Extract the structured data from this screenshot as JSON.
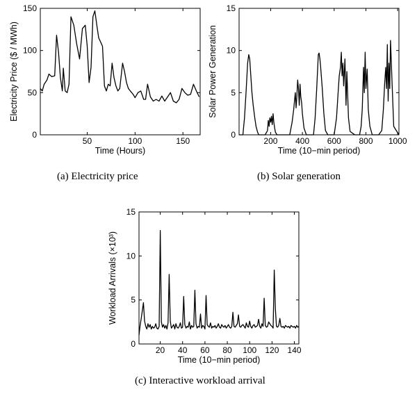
{
  "captions": {
    "a": "(a) Electricity price",
    "b": "(b) Solar generation",
    "c": "(c) Interactive workload arrival"
  },
  "chart_data": [
    {
      "id": "a",
      "type": "line",
      "xlabel": "Time (Hours)",
      "ylabel": "Electricity Price ($ / MWh)",
      "xlim": [
        1,
        168
      ],
      "ylim": [
        0,
        150
      ],
      "xticks": [
        50,
        100,
        150
      ],
      "yticks": [
        0,
        50,
        100,
        150
      ],
      "grid": false,
      "color": "#000000",
      "x": [
        1,
        3,
        5,
        8,
        10,
        13,
        16,
        18,
        20,
        22,
        24,
        25,
        27,
        29,
        31,
        33,
        36,
        39,
        42,
        45,
        48,
        50,
        52,
        54,
        56,
        58,
        60,
        62,
        64,
        66,
        68,
        70,
        72,
        74,
        76,
        78,
        80,
        82,
        84,
        87,
        89,
        91,
        93,
        95,
        98,
        100,
        103,
        106,
        109,
        111,
        113,
        116,
        119,
        122,
        125,
        128,
        131,
        134,
        137,
        140,
        143,
        146,
        149,
        152,
        155,
        158,
        161,
        164,
        167
      ],
      "y": [
        55,
        52,
        60,
        65,
        72,
        69,
        70,
        118,
        98,
        68,
        52,
        79,
        52,
        50,
        60,
        140,
        130,
        108,
        90,
        126,
        130,
        105,
        62,
        80,
        140,
        147,
        130,
        115,
        110,
        105,
        58,
        52,
        60,
        58,
        85,
        68,
        58,
        52,
        55,
        85,
        75,
        62,
        55,
        52,
        48,
        44,
        50,
        52,
        42,
        42,
        60,
        45,
        40,
        42,
        40,
        46,
        40,
        45,
        50,
        40,
        38,
        42,
        55,
        50,
        47,
        48,
        60,
        52,
        45
      ]
    },
    {
      "id": "b",
      "type": "line",
      "xlabel": "Time (10−min period)",
      "ylabel": "Solar Power Generation",
      "xlim": [
        1,
        1008
      ],
      "ylim": [
        0,
        15
      ],
      "xticks": [
        200,
        400,
        600,
        800,
        1000
      ],
      "yticks": [
        0,
        5,
        10,
        15
      ],
      "grid": false,
      "color": "#000000",
      "x": [
        0,
        25,
        35,
        45,
        55,
        62,
        68,
        75,
        82,
        90,
        100,
        108,
        118,
        125,
        140,
        165,
        180,
        185,
        190,
        195,
        200,
        205,
        210,
        215,
        220,
        225,
        230,
        240,
        270,
        320,
        335,
        345,
        350,
        355,
        360,
        365,
        370,
        375,
        380,
        385,
        390,
        395,
        400,
        410,
        425,
        470,
        480,
        490,
        500,
        505,
        510,
        515,
        525,
        535,
        545,
        560,
        600,
        615,
        625,
        632,
        640,
        645,
        650,
        655,
        660,
        668,
        675,
        680,
        690,
        700,
        730,
        760,
        770,
        777,
        785,
        790,
        795,
        800,
        808,
        815,
        825,
        840,
        880,
        900,
        910,
        918,
        925,
        930,
        935,
        940,
        945,
        950,
        955,
        965,
        975,
        1008
      ],
      "y": [
        0,
        0,
        2,
        5,
        8.5,
        9.5,
        9,
        7,
        5,
        3.5,
        2,
        1,
        0.3,
        0,
        0,
        0,
        0.5,
        1.7,
        1,
        2,
        1.5,
        2.2,
        1.2,
        2.5,
        1.5,
        0.8,
        0.3,
        0,
        0,
        0,
        1.5,
        3,
        4,
        5,
        3.2,
        4.5,
        6.5,
        5.5,
        3.5,
        6,
        4.5,
        3.8,
        2.5,
        0.8,
        0,
        0,
        2,
        5.5,
        9.5,
        9.7,
        9,
        8,
        5.5,
        2.5,
        0.5,
        0,
        0,
        2,
        5,
        7,
        8,
        9.8,
        7,
        8.5,
        5.8,
        9,
        3.5,
        7.5,
        2,
        0.4,
        0,
        0,
        1,
        3,
        8,
        5,
        9.8,
        5.5,
        7.8,
        3,
        1,
        0,
        0,
        0.5,
        3,
        6,
        8,
        5.5,
        10.7,
        4,
        8.5,
        5.5,
        11.2,
        6,
        1,
        0
      ]
    },
    {
      "id": "c",
      "type": "line",
      "xlabel": "Time (10−min period)",
      "ylabel": "Workload Arrivals (×10³)",
      "xlim": [
        1,
        144
      ],
      "ylim": [
        0,
        15
      ],
      "xticks": [
        20,
        40,
        60,
        80,
        100,
        120,
        140
      ],
      "yticks": [
        0,
        5,
        10,
        15
      ],
      "grid": false,
      "color": "#000000",
      "x": [
        1,
        2,
        3,
        4,
        5,
        6,
        7,
        8,
        9,
        10,
        11,
        12,
        13,
        14,
        15,
        16,
        17,
        18,
        19,
        20,
        21,
        22,
        23,
        24,
        25,
        26,
        27,
        28,
        29,
        30,
        31,
        32,
        33,
        34,
        35,
        36,
        37,
        38,
        39,
        40,
        41,
        42,
        43,
        44,
        45,
        46,
        47,
        48,
        49,
        50,
        51,
        52,
        53,
        54,
        55,
        56,
        57,
        58,
        59,
        60,
        61,
        62,
        63,
        64,
        65,
        66,
        67,
        68,
        69,
        70,
        71,
        72,
        73,
        74,
        75,
        76,
        77,
        78,
        79,
        80,
        81,
        82,
        83,
        84,
        85,
        86,
        87,
        88,
        89,
        90,
        91,
        92,
        93,
        94,
        95,
        96,
        97,
        98,
        99,
        100,
        101,
        102,
        103,
        104,
        105,
        106,
        107,
        108,
        109,
        110,
        111,
        112,
        113,
        114,
        115,
        116,
        117,
        118,
        119,
        120,
        121,
        122,
        123,
        124,
        125,
        126,
        127,
        128,
        129,
        130,
        131,
        132,
        133,
        134,
        135,
        136,
        137,
        138,
        139,
        140,
        141,
        142,
        143,
        144
      ],
      "y": [
        1.0,
        2.1,
        2.9,
        3.8,
        4.7,
        2.6,
        2.0,
        1.7,
        2.3,
        1.9,
        2.2,
        1.7,
        2.0,
        1.8,
        1.9,
        2.3,
        1.8,
        1.7,
        2.0,
        12.9,
        2.5,
        1.9,
        2.2,
        1.8,
        2.1,
        1.7,
        2.4,
        7.9,
        2.6,
        1.8,
        2.0,
        2.2,
        1.7,
        2.3,
        1.9,
        1.8,
        2.0,
        2.4,
        1.8,
        1.9,
        5.4,
        2.2,
        1.8,
        2.0,
        1.9,
        2.5,
        1.7,
        2.1,
        1.9,
        2.0,
        6.1,
        2.3,
        1.8,
        2.0,
        1.9,
        3.4,
        1.8,
        2.1,
        2.0,
        1.7,
        5.5,
        2.2,
        2.0,
        1.9,
        2.4,
        1.8,
        2.0,
        1.9,
        2.1,
        1.8,
        2.0,
        2.3,
        1.9,
        1.8,
        2.2,
        2.0,
        1.9,
        2.1,
        1.8,
        2.0,
        2.2,
        1.9,
        1.8,
        2.0,
        3.6,
        2.0,
        1.9,
        2.1,
        2.3,
        3.3,
        2.0,
        1.9,
        2.1,
        2.2,
        2.0,
        1.8,
        2.4,
        2.0,
        1.9,
        2.6,
        2.0,
        1.8,
        2.1,
        2.2,
        1.9,
        2.0,
        2.1,
        2.8,
        2.0,
        1.8,
        2.3,
        2.0,
        5.2,
        2.1,
        1.9,
        2.0,
        2.5,
        2.3,
        2.1,
        2.0,
        1.8,
        8.4,
        4.0,
        2.0,
        1.9,
        2.1,
        2.9,
        2.0,
        1.9,
        2.0,
        1.8,
        2.1,
        2.0,
        1.9,
        2.0,
        1.8,
        2.1,
        2.0,
        1.9,
        2.0,
        1.8,
        2.1,
        1.9,
        2.0
      ]
    }
  ]
}
